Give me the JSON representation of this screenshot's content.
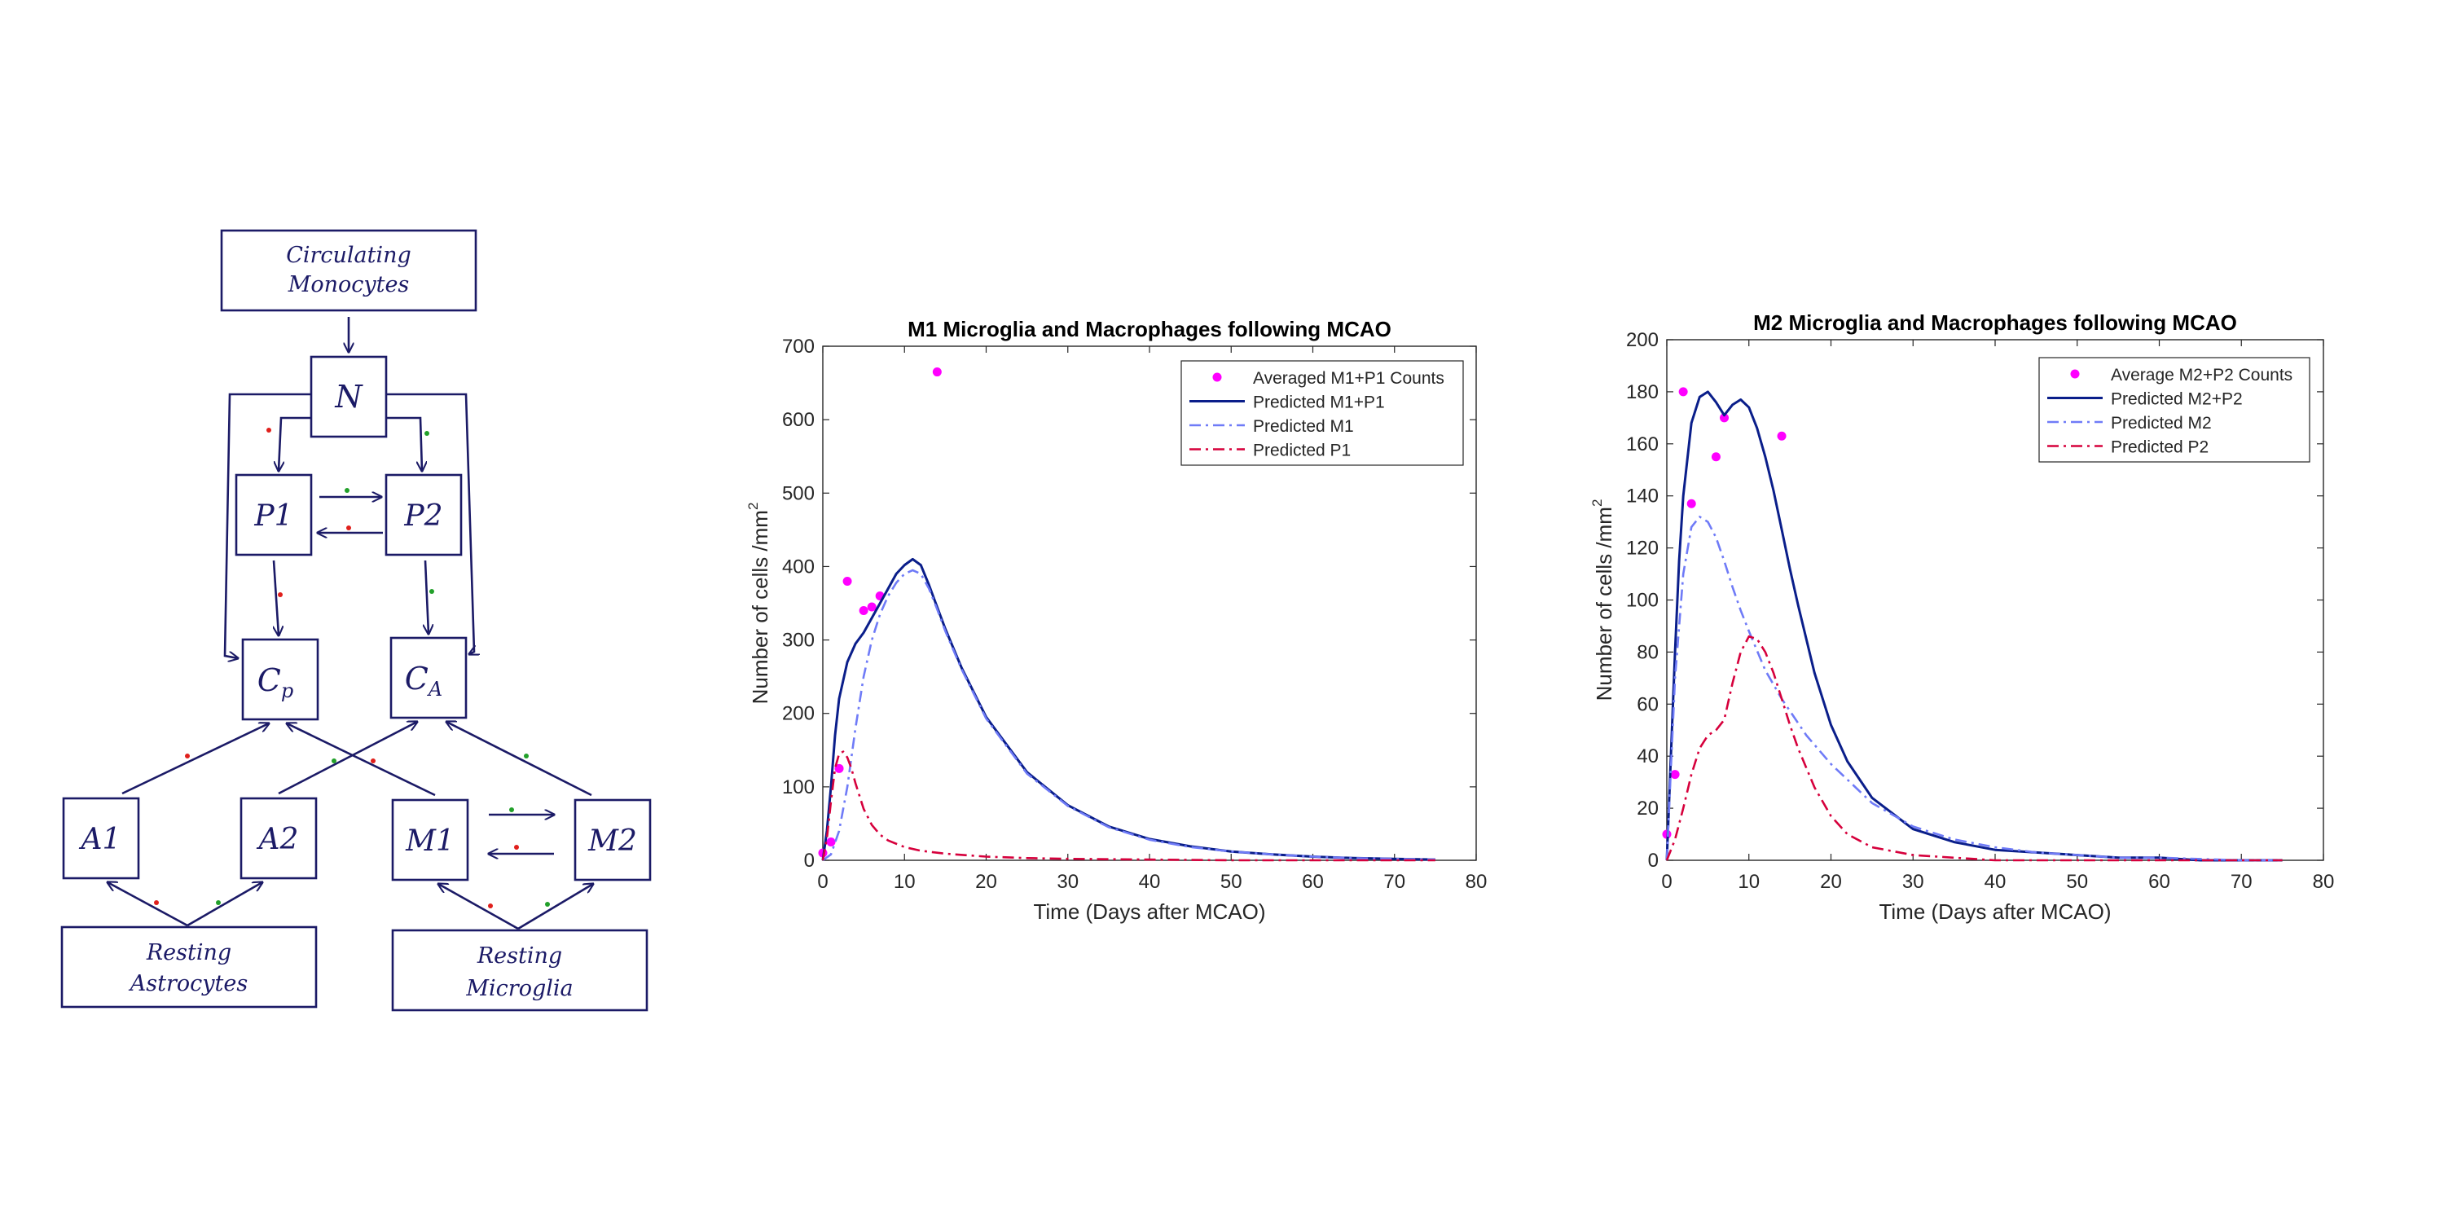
{
  "diagram": {
    "nodes": {
      "circulating_monocytes": [
        "Circulating",
        "Monocytes"
      ],
      "N": "N",
      "P1": "P1",
      "P2": "P2",
      "Cp": {
        "main": "C",
        "sub": "p"
      },
      "CA": {
        "main": "C",
        "sub": "A"
      },
      "A1": "A1",
      "A2": "A2",
      "M1": "M1",
      "M2": "M2",
      "resting_astrocytes": [
        "Resting",
        "Astrocytes"
      ],
      "resting_microglia": [
        "Resting",
        "Microglia"
      ]
    },
    "colors": {
      "ink": "#1b1a66",
      "red_dot": "#e0201c",
      "green_dot": "#22a02a"
    }
  },
  "chart_data": [
    {
      "type": "line",
      "title": "M1 Microglia and Macrophages following MCAO",
      "xlabel": "Time (Days after MCAO)",
      "ylabel": "Number of cells /mm",
      "ylabel_sup": "2",
      "xlim": [
        0,
        80
      ],
      "ylim": [
        0,
        700
      ],
      "xticks": [
        0,
        10,
        20,
        30,
        40,
        50,
        60,
        70,
        80
      ],
      "yticks": [
        0,
        100,
        200,
        300,
        400,
        500,
        600,
        700
      ],
      "grid": false,
      "legend_position": "top-right",
      "series": [
        {
          "name": "Averaged M1+P1 Counts",
          "style": "markers",
          "color": "#ff00ff",
          "x": [
            0,
            1,
            2,
            3,
            5,
            6,
            7,
            14
          ],
          "y": [
            10,
            25,
            125,
            380,
            340,
            345,
            360,
            665
          ]
        },
        {
          "name": "Predicted M1+P1",
          "style": "solid",
          "color": "#0a1e8a",
          "x": [
            0,
            0.5,
            1,
            1.5,
            2,
            3,
            4,
            5,
            6,
            7,
            8,
            9,
            10,
            11,
            12,
            13,
            14,
            15,
            17,
            20,
            25,
            30,
            35,
            40,
            45,
            50,
            55,
            60,
            65,
            70,
            75
          ],
          "y": [
            0,
            40,
            100,
            170,
            220,
            270,
            295,
            310,
            330,
            350,
            370,
            390,
            402,
            410,
            402,
            375,
            345,
            315,
            262,
            195,
            120,
            75,
            46,
            29,
            19,
            12,
            8,
            5,
            3,
            2,
            1
          ]
        },
        {
          "name": "Predicted M1",
          "style": "dashdot",
          "color": "#6f7bf7",
          "x": [
            0,
            1,
            2,
            3,
            4,
            5,
            6,
            7,
            8,
            9,
            10,
            11,
            12,
            13,
            14,
            15,
            17,
            20,
            25,
            30,
            35,
            40,
            45,
            50,
            55,
            60,
            65,
            70,
            75
          ],
          "y": [
            0,
            8,
            40,
            100,
            180,
            250,
            300,
            335,
            360,
            378,
            390,
            395,
            390,
            370,
            342,
            312,
            260,
            193,
            118,
            74,
            45,
            28,
            18,
            12,
            8,
            5,
            3,
            2,
            1
          ]
        },
        {
          "name": "Predicted P1",
          "style": "dashdot",
          "color": "#d6003c",
          "x": [
            0,
            0.5,
            1,
            1.5,
            2,
            2.5,
            3,
            3.5,
            4,
            5,
            6,
            7,
            8,
            10,
            12,
            15,
            20,
            25,
            30,
            40,
            50,
            60,
            75
          ],
          "y": [
            0,
            30,
            80,
            125,
            145,
            148,
            140,
            125,
            105,
            70,
            48,
            35,
            27,
            18,
            13,
            9,
            5,
            3,
            2,
            1,
            0,
            0,
            0
          ]
        }
      ]
    },
    {
      "type": "line",
      "title": "M2 Microglia and Macrophages following MCAO",
      "xlabel": "Time (Days after MCAO)",
      "ylabel": "Number of cells /mm",
      "ylabel_sup": "2",
      "xlim": [
        0,
        80
      ],
      "ylim": [
        0,
        200
      ],
      "xticks": [
        0,
        10,
        20,
        30,
        40,
        50,
        60,
        70,
        80
      ],
      "yticks": [
        0,
        20,
        40,
        60,
        80,
        100,
        120,
        140,
        160,
        180,
        200
      ],
      "grid": false,
      "legend_position": "top-right",
      "series": [
        {
          "name": "Average M2+P2 Counts",
          "style": "markers",
          "color": "#ff00ff",
          "x": [
            0,
            1,
            2,
            3,
            6,
            7,
            14
          ],
          "y": [
            10,
            33,
            180,
            137,
            155,
            170,
            163
          ]
        },
        {
          "name": "Predicted M2+P2",
          "style": "solid",
          "color": "#0a1e8a",
          "x": [
            0,
            0.5,
            1,
            1.5,
            2,
            3,
            4,
            5,
            6,
            7,
            8,
            9,
            10,
            11,
            12,
            13,
            14,
            15,
            16,
            18,
            20,
            22,
            25,
            30,
            35,
            40,
            45,
            50,
            55,
            60,
            65,
            70,
            75
          ],
          "y": [
            0,
            40,
            80,
            115,
            140,
            168,
            178,
            180,
            176,
            171,
            175,
            177,
            174,
            166,
            155,
            142,
            127,
            112,
            98,
            72,
            52,
            38,
            24,
            12,
            7,
            4,
            3,
            2,
            1,
            1,
            0,
            0,
            0
          ]
        },
        {
          "name": "Predicted M2",
          "style": "dashdot",
          "color": "#6f7bf7",
          "x": [
            0,
            0.5,
            1,
            2,
            3,
            4,
            5,
            6,
            7,
            8,
            9,
            10,
            12,
            14,
            17,
            20,
            25,
            30,
            35,
            40,
            45,
            50,
            55,
            60,
            70,
            75
          ],
          "y": [
            0,
            35,
            70,
            110,
            128,
            132,
            130,
            124,
            115,
            105,
            96,
            88,
            73,
            62,
            48,
            37,
            22,
            13,
            8,
            5,
            3,
            2,
            1,
            1,
            0,
            0
          ]
        },
        {
          "name": "Predicted P2",
          "style": "dashdot",
          "color": "#d6003c",
          "x": [
            0,
            1,
            2,
            3,
            4,
            5,
            6,
            7,
            8,
            9,
            10,
            11,
            12,
            13,
            14,
            15,
            16,
            18,
            20,
            22,
            25,
            30,
            35,
            40,
            50,
            60,
            75
          ],
          "y": [
            0,
            8,
            20,
            33,
            43,
            48,
            50,
            54,
            68,
            80,
            86,
            85,
            80,
            72,
            62,
            52,
            43,
            28,
            17,
            10,
            5,
            2,
            1,
            0,
            0,
            0,
            0
          ]
        }
      ]
    }
  ]
}
